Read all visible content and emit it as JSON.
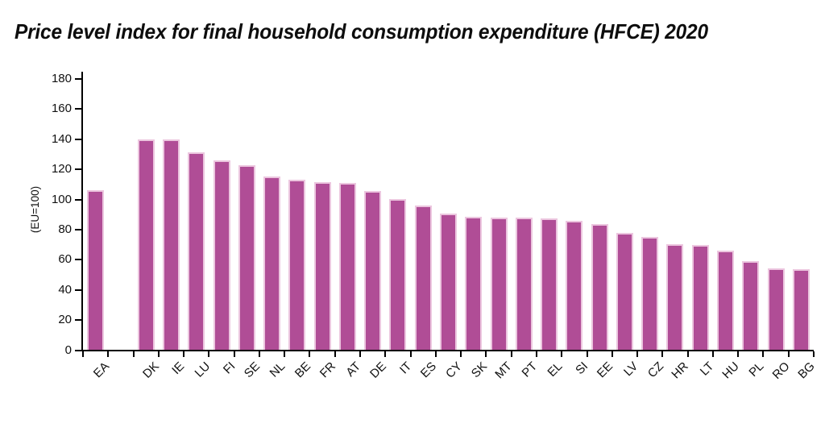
{
  "chart_data": {
    "type": "bar",
    "title": "Price level index for final household consumption expenditure (HFCE) 2020",
    "ylabel": "(EU=100)",
    "xlabel": "",
    "ylim": [
      0,
      180
    ],
    "yticks": [
      0,
      20,
      40,
      60,
      80,
      100,
      120,
      140,
      160,
      180
    ],
    "grid": false,
    "legend_position": "none",
    "bar_color": "#b04d96",
    "bar_border_color": "#ecc6df",
    "axis_color": "#000000",
    "text_color": "#111111",
    "categories": [
      "EA",
      "",
      "DK",
      "IE",
      "LU",
      "FI",
      "SE",
      "NL",
      "BE",
      "FR",
      "AT",
      "DE",
      "IT",
      "ES",
      "CY",
      "SK",
      "MT",
      "PT",
      "EL",
      "SI",
      "EE",
      "LV",
      "CZ",
      "HR",
      "LT",
      "HU",
      "PL",
      "RO",
      "BG"
    ],
    "values": [
      107.2,
      null,
      140.6,
      140.4,
      132.0,
      126.5,
      123.3,
      115.9,
      113.8,
      112.4,
      111.7,
      106.5,
      101.0,
      96.9,
      91.3,
      89.4,
      89.0,
      88.9,
      88.0,
      86.7,
      84.4,
      78.7,
      76.2,
      71.0,
      70.7,
      66.7,
      59.8,
      55.0,
      54.5
    ]
  }
}
